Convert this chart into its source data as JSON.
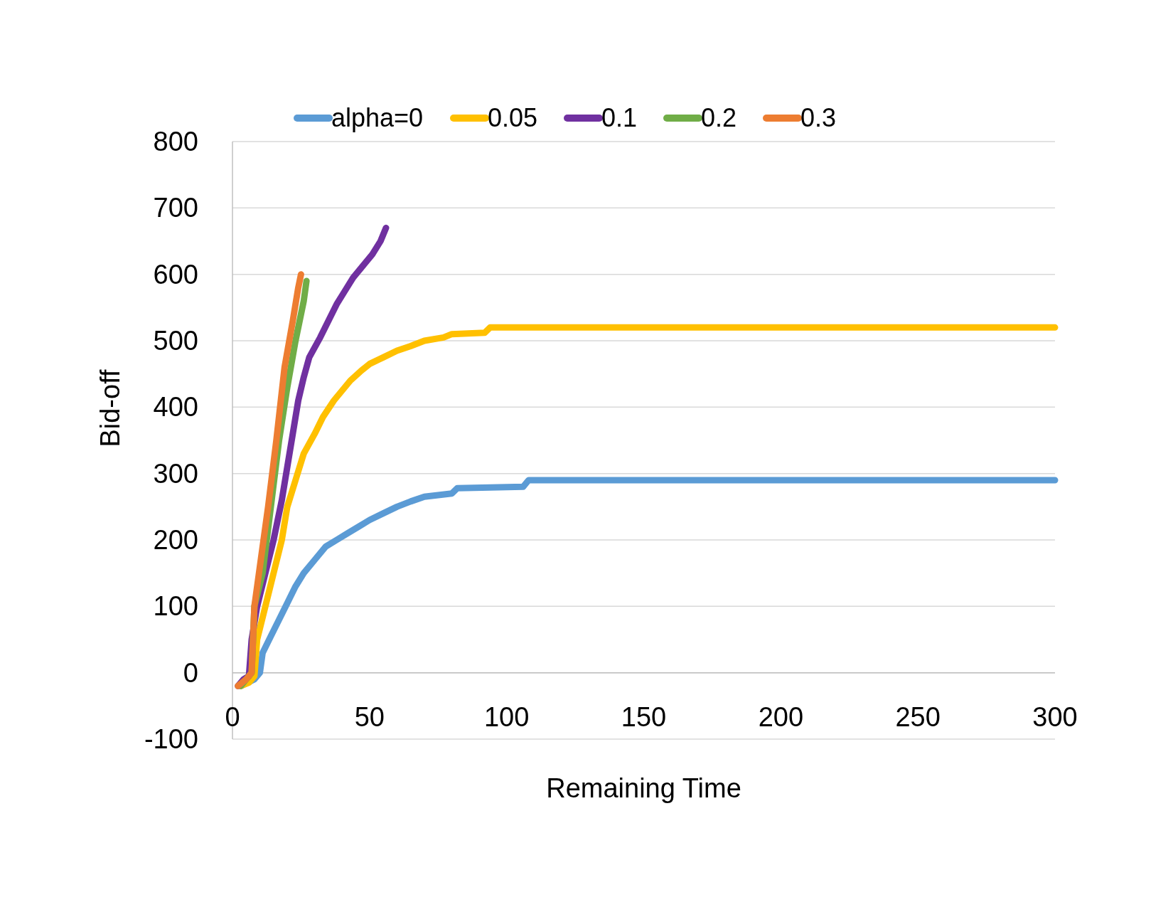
{
  "chart_data": {
    "type": "line",
    "xlabel": "Remaining Time",
    "ylabel": "Bid-off",
    "xlim": [
      0,
      300
    ],
    "xticks": [
      0,
      50,
      100,
      150,
      200,
      250,
      300
    ],
    "ylim": [
      -100,
      800
    ],
    "yticks": [
      -100,
      0,
      100,
      200,
      300,
      400,
      500,
      600,
      700,
      800
    ],
    "grid": "y",
    "legend": "top",
    "marker": "none",
    "line_style": "solid",
    "series": [
      {
        "name": "alpha=0",
        "color": "#5b9bd5",
        "x": [
          3,
          8,
          10,
          11,
          14,
          17,
          20,
          23,
          26,
          30,
          34,
          38,
          42,
          46,
          50,
          55,
          60,
          65,
          70,
          80,
          82,
          106,
          108,
          300
        ],
        "values": [
          -20,
          -10,
          0,
          30,
          55,
          80,
          105,
          130,
          150,
          170,
          190,
          200,
          210,
          220,
          230,
          240,
          250,
          258,
          265,
          270,
          278,
          280,
          290,
          290
        ]
      },
      {
        "name": "0.05",
        "color": "#ffc000",
        "x": [
          3,
          6,
          8,
          9,
          12,
          15,
          18,
          20,
          23,
          26,
          30,
          33,
          37,
          40,
          43,
          47,
          50,
          55,
          60,
          65,
          70,
          77,
          80,
          92,
          94,
          300
        ],
        "values": [
          -20,
          -15,
          -5,
          50,
          100,
          150,
          200,
          250,
          290,
          330,
          360,
          385,
          410,
          425,
          440,
          455,
          465,
          475,
          485,
          492,
          500,
          505,
          510,
          512,
          520,
          520
        ]
      },
      {
        "name": "0.1",
        "color": "#7030a0",
        "x": [
          2,
          4,
          6,
          7,
          9,
          12,
          15,
          18,
          20,
          22,
          24,
          26,
          28,
          32,
          35,
          38,
          41,
          44,
          48,
          51,
          54,
          56
        ],
        "values": [
          -20,
          -10,
          -5,
          50,
          100,
          150,
          200,
          260,
          310,
          360,
          410,
          445,
          475,
          505,
          530,
          555,
          575,
          595,
          615,
          630,
          650,
          670
        ]
      },
      {
        "name": "0.2",
        "color": "#70ad47",
        "x": [
          3,
          7,
          8,
          11,
          14,
          17,
          20,
          23,
          26,
          27
        ],
        "values": [
          -20,
          0,
          100,
          150,
          250,
          350,
          430,
          500,
          560,
          590
        ]
      },
      {
        "name": "0.3",
        "color": "#ed7d31",
        "x": [
          2,
          5,
          7,
          8,
          10,
          13,
          16,
          19,
          22,
          24,
          25
        ],
        "values": [
          -20,
          -10,
          0,
          100,
          160,
          250,
          350,
          460,
          530,
          580,
          600
        ]
      }
    ]
  }
}
